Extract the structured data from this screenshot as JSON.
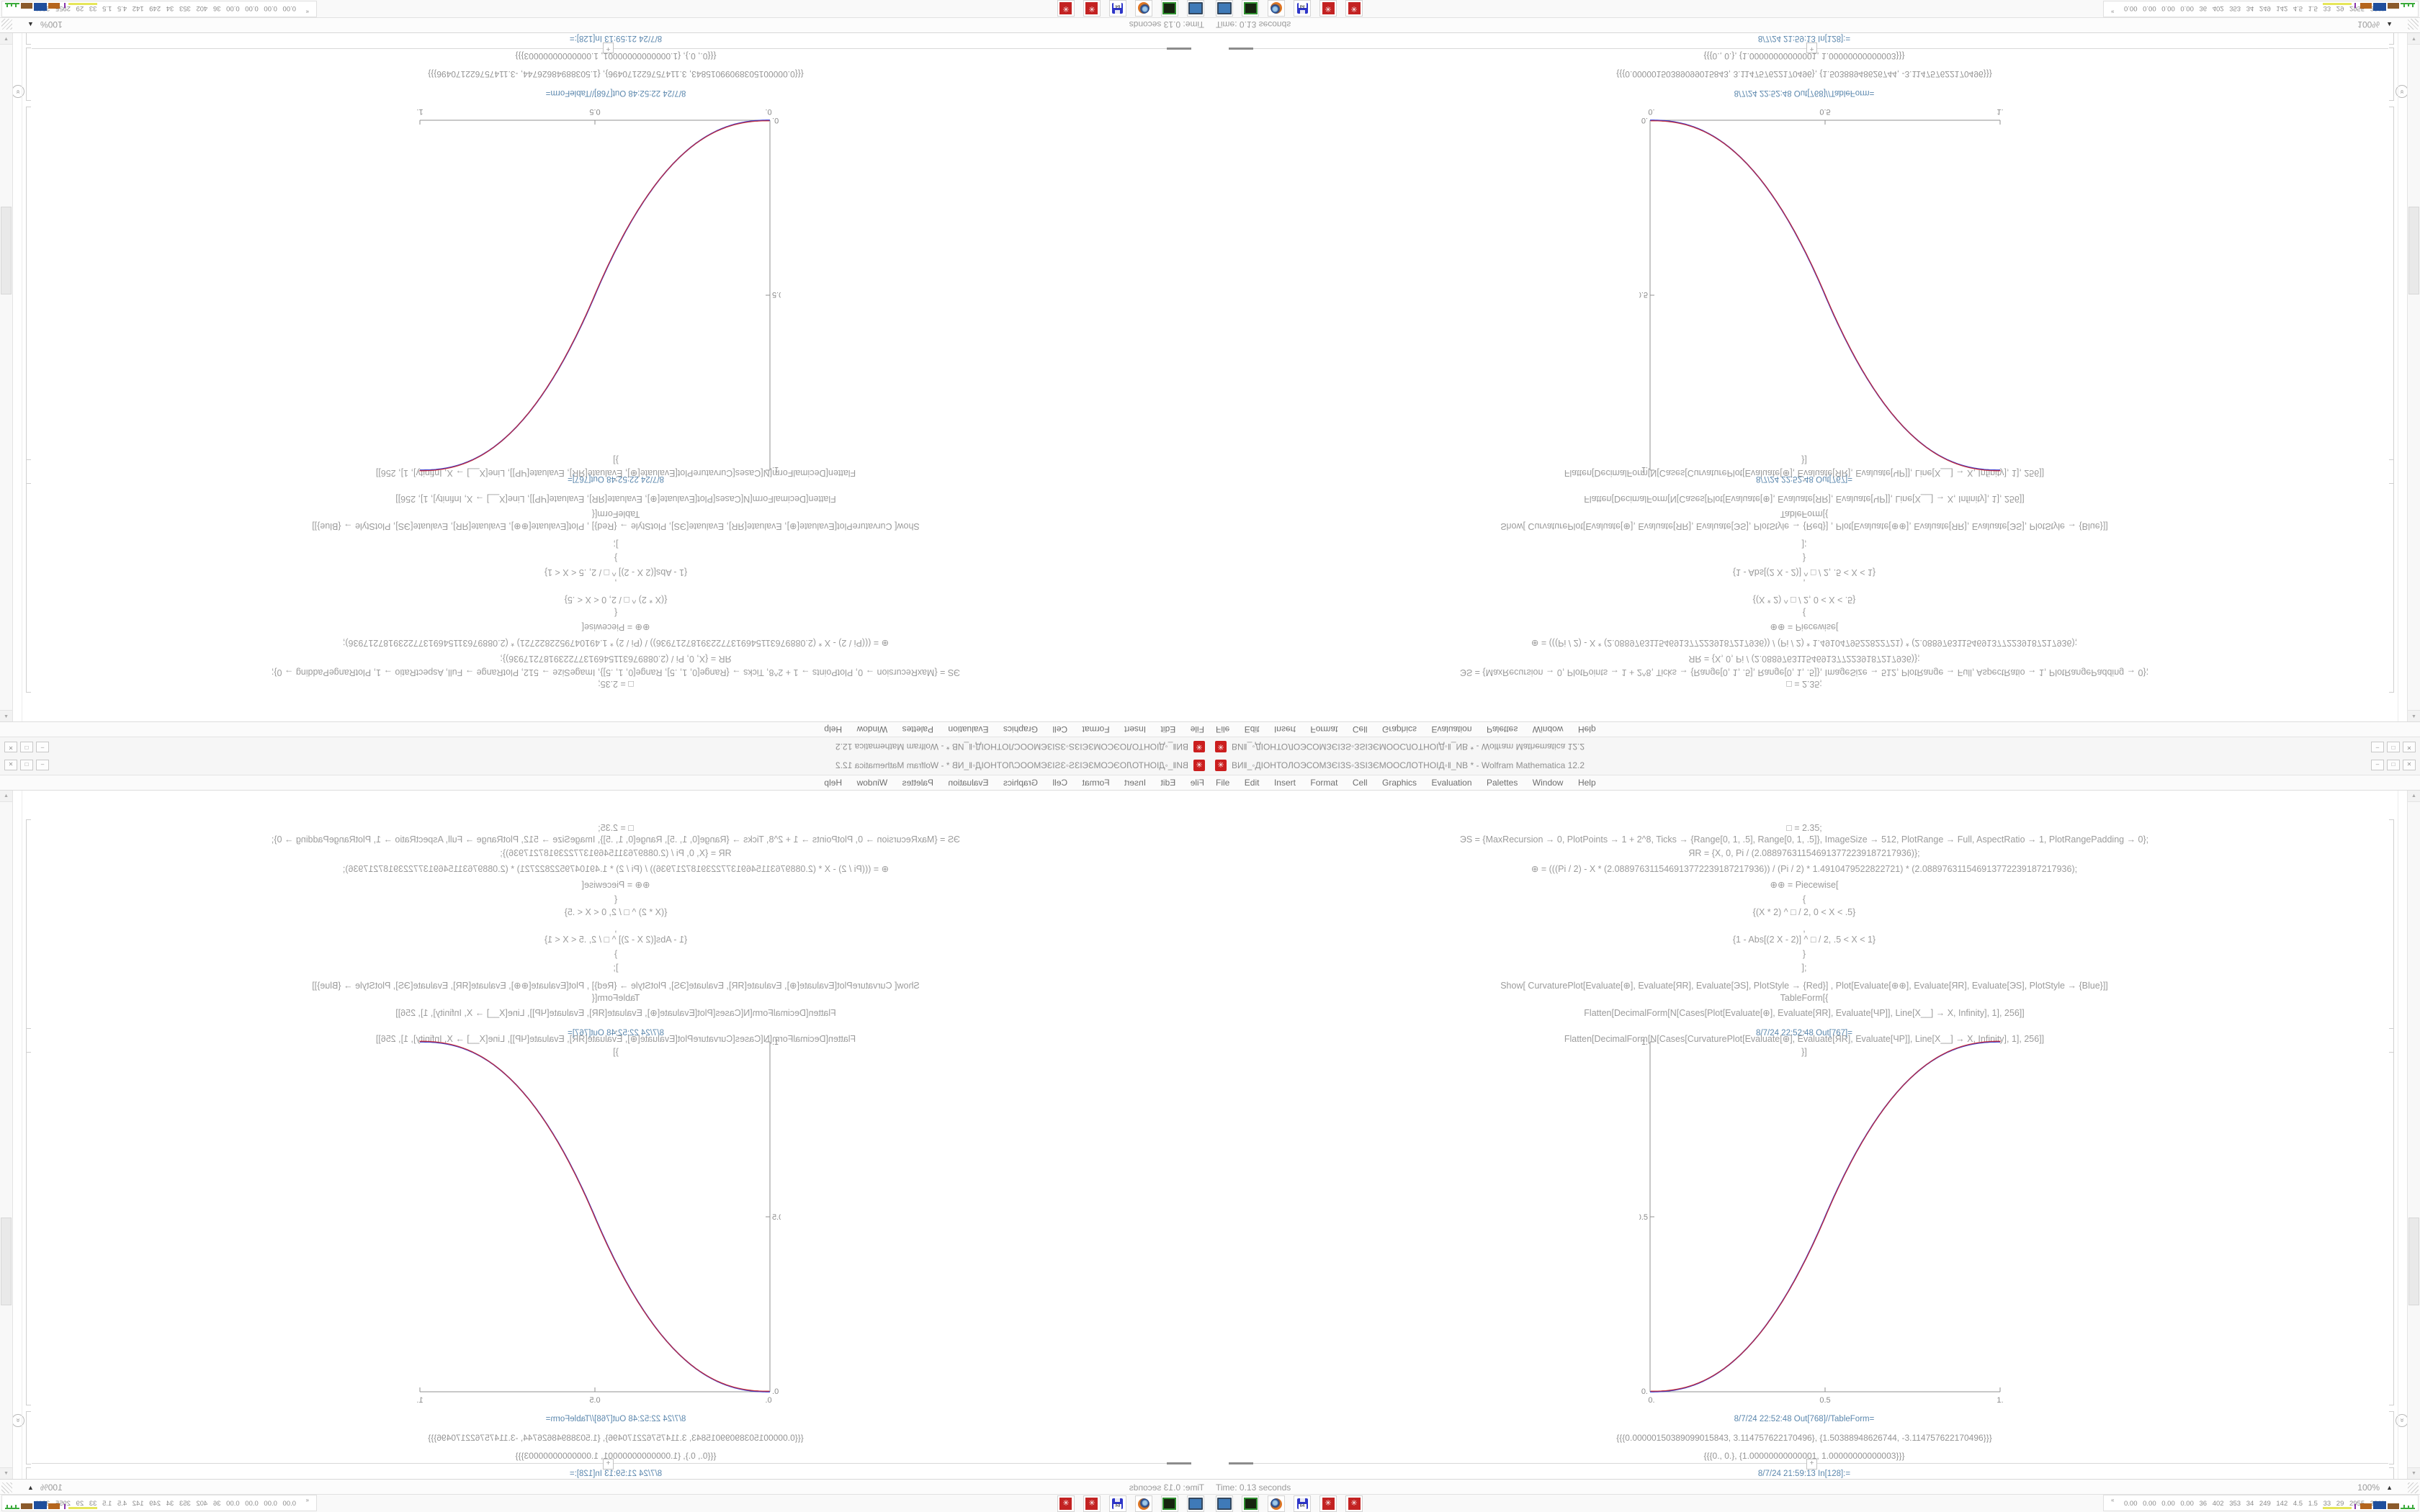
{
  "app": {
    "title": "ВИ‖_◦ДІОНТОЛОЭСОМЗЄІЗЅ◦ЗЅІЗЄМООСЛОТНОІД◦‖_NB * - Wolfram Mathematica 12.2",
    "menu": [
      "File",
      "Edit",
      "Insert",
      "Format",
      "Cell",
      "Graphics",
      "Evaluation",
      "Palettes",
      "Window",
      "Help"
    ],
    "window_buttons": [
      "–",
      "□",
      "✕"
    ],
    "app_icon_glyph": "✳"
  },
  "notebook": {
    "lines": [
      "□ = 2.35;",
      "ЭЅ = {MaxRecursion → 0, PlotPoints → 1 + 2^8, Ticks → {Range[0, 1, .5], Range[0, 1, .5]}, ImageSize → 512, PlotRange → Full, AspectRatio → 1, PlotRangePadding → 0};",
      "ЯR = {X, 0, Pi / (2.088976311546913772239187217936)};",
      "⊕ = (((Pi / 2) - X * (2.088976311546913772239187217936)) / (Pi / 2) * 1.4910479522822721) * (2.088976311546913772239187217936);",
      "⊕⊕ = Piecewise[",
      "{",
      "{(X * 2) ^ □ / 2, 0 < X < .5}",
      ",",
      "{1 - Abs[(2 X - 2)] ^ □ / 2, .5 < X < 1}",
      "}",
      "];",
      "Show[  CurvaturePlot[Evaluate[⊕], Evaluate[ЯR], Evaluate[ЭЅ], PlotStyle → {Red}]  ,  Plot[Evaluate[⊕⊕], Evaluate[ЯR], Evaluate[ЭЅ],  PlotStyle → {Blue}]]",
      "TableForm[{",
      "Flatten[DecimalForm[N[Cases[Plot[Evaluate[⊕], Evaluate[ЯR], Evaluate[ЧР]], Line[X__] → X, Infinity], 1], 256]]",
      ",",
      "Flatten[DecimalForm[N[Cases[CurvaturePlot[Evaluate[⊕], Evaluate[ЯR], Evaluate[ЧР]], Line[X__] → X, Infinity], 1], 256]]",
      "}]"
    ],
    "out_plot_label": "8/7/24 22:52:48 Out[767]=",
    "out_table_label": "8/7/24 22:52:48 Out[768]//TableForm=",
    "table_rows": [
      "{{{0.00000150389099015843, 3.114757622170496}, {1.50388948626744, -3.114757622170496}}}",
      "{{{0., 0.}, {1.00000000000001, 1.00000000000003}}}"
    ],
    "in_label": "8/7/24 21:59:13 In[128]:=",
    "plus_label": "+",
    "scroll_chevron": "»",
    "scrollbar_up": "▲",
    "scrollbar_down": "▼"
  },
  "statusbar": {
    "time": "Time: 0.13 seconds",
    "zoom": "100%",
    "zoom_icon": "▲"
  },
  "taskbar": {
    "icons": [
      "computer-monitor",
      "green-drive",
      "firefox",
      "floppy-64",
      "mathematica-1",
      "mathematica-2"
    ],
    "floppy_label": "64",
    "wolfram_glyph": "✳"
  },
  "tray": {
    "stats": "0.00 0.00 0.00 0.00 36 402 353 34 249 142 4.5 1.5 33 29 2955 3811"
  },
  "layout": {
    "quadrants": [
      "top-left: rotated 180°",
      "top-right: flipped vertically",
      "bottom-left: flipped horizontally",
      "bottom-right: original"
    ]
  },
  "chart_data": {
    "type": "line",
    "title": "",
    "xlabel": "",
    "ylabel": "",
    "xlim": [
      0,
      1
    ],
    "ylim": [
      0,
      1
    ],
    "xticks": [
      "0.",
      "0.5",
      "1."
    ],
    "yticks": [
      "0.",
      "0.5",
      "1."
    ],
    "grid": false,
    "legend_position": "none",
    "exponent": 2.35,
    "formula": "y = (2x)^2.35 / 2 for 0 <= x < 0.5 ; y = 1 - |2x-2|^2.35 / 2 for 0.5 <= x <= 1",
    "series": [
      {
        "name": "CurvaturePlot",
        "color": "#cf2929"
      },
      {
        "name": "Plot",
        "color": "#3a3ace"
      }
    ],
    "points": [
      [
        0,
        0
      ],
      [
        0.05,
        0.002
      ],
      [
        0.1,
        0.011
      ],
      [
        0.15,
        0.03
      ],
      [
        0.2,
        0.058
      ],
      [
        0.25,
        0.098
      ],
      [
        0.3,
        0.151
      ],
      [
        0.35,
        0.216
      ],
      [
        0.4,
        0.296
      ],
      [
        0.45,
        0.39
      ],
      [
        0.5,
        0.5
      ],
      [
        0.55,
        0.61
      ],
      [
        0.6,
        0.704
      ],
      [
        0.65,
        0.784
      ],
      [
        0.7,
        0.849
      ],
      [
        0.75,
        0.902
      ],
      [
        0.8,
        0.942
      ],
      [
        0.85,
        0.97
      ],
      [
        0.9,
        0.989
      ],
      [
        0.95,
        0.998
      ],
      [
        1,
        1
      ]
    ]
  }
}
